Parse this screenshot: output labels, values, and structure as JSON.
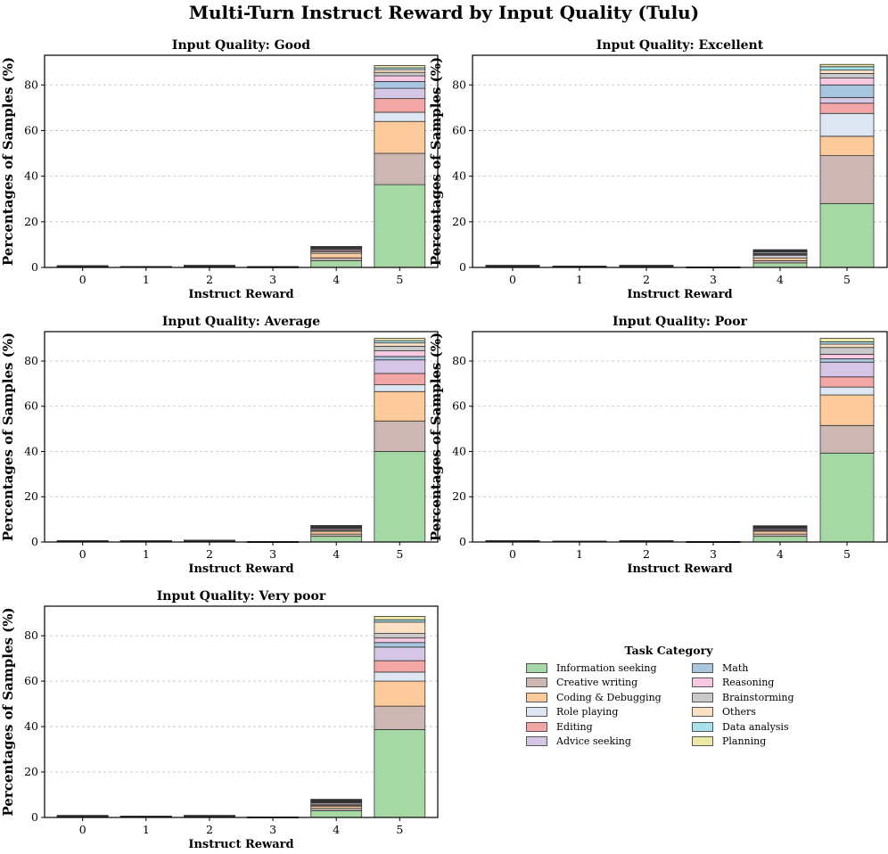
{
  "title": "Multi-Turn Instruct Reward by Input Quality (Tulu)",
  "legend": {
    "title": "Task Category",
    "items": [
      {
        "name": "Information seeking",
        "color": "#a6d8a6"
      },
      {
        "name": "Creative writing",
        "color": "#cdb7b2"
      },
      {
        "name": "Coding & Debugging",
        "color": "#fdca9b"
      },
      {
        "name": "Role playing",
        "color": "#dde6f3"
      },
      {
        "name": "Editing",
        "color": "#f3a6a6"
      },
      {
        "name": "Advice seeking",
        "color": "#d5c6e6"
      },
      {
        "name": "Math",
        "color": "#a9c6e0"
      },
      {
        "name": "Reasoning",
        "color": "#f6c8e2"
      },
      {
        "name": "Brainstorming",
        "color": "#c9c9c9"
      },
      {
        "name": "Others",
        "color": "#fbe0c4"
      },
      {
        "name": "Data analysis",
        "color": "#a8e3ed"
      },
      {
        "name": "Planning",
        "color": "#ece9a8"
      }
    ]
  },
  "chart_data": [
    {
      "type": "bar",
      "stacked": true,
      "title": "Input Quality: Good",
      "xlabel": "Instruct Reward",
      "ylabel": "Percentages of Samples (%)",
      "categories": [
        "0",
        "1",
        "2",
        "3",
        "4",
        "5"
      ],
      "ylim": [
        0,
        93
      ],
      "yticks": [
        0,
        20,
        40,
        60,
        80
      ],
      "grid": "y",
      "series": [
        {
          "name": "Information seeking",
          "values": [
            0.3,
            0.2,
            0.4,
            0.1,
            3.0,
            36.3
          ]
        },
        {
          "name": "Creative writing",
          "values": [
            0.1,
            0.05,
            0.1,
            0.05,
            1.2,
            13.7
          ]
        },
        {
          "name": "Coding & Debugging",
          "values": [
            0.1,
            0.05,
            0.1,
            0.05,
            2.0,
            14.0
          ]
        },
        {
          "name": "Role playing",
          "values": [
            0.05,
            0.02,
            0.05,
            0.02,
            0.6,
            4.0
          ]
        },
        {
          "name": "Editing",
          "values": [
            0.05,
            0.02,
            0.05,
            0.02,
            0.6,
            6.0
          ]
        },
        {
          "name": "Advice seeking",
          "values": [
            0.05,
            0.02,
            0.05,
            0.02,
            0.5,
            4.5
          ]
        },
        {
          "name": "Math",
          "values": [
            0.05,
            0.02,
            0.05,
            0.02,
            0.4,
            3.0
          ]
        },
        {
          "name": "Reasoning",
          "values": [
            0.02,
            0.02,
            0.02,
            0.01,
            0.3,
            2.5
          ]
        },
        {
          "name": "Brainstorming",
          "values": [
            0.02,
            0.01,
            0.02,
            0.01,
            0.2,
            1.5
          ]
        },
        {
          "name": "Others",
          "values": [
            0.02,
            0.01,
            0.02,
            0.01,
            0.2,
            1.2
          ]
        },
        {
          "name": "Data analysis",
          "values": [
            0.02,
            0.01,
            0.02,
            0.01,
            0.1,
            0.8
          ]
        },
        {
          "name": "Planning",
          "values": [
            0.02,
            0.01,
            0.02,
            0.01,
            0.1,
            1.0
          ]
        }
      ]
    },
    {
      "type": "bar",
      "stacked": true,
      "title": "Input Quality: Excellent",
      "xlabel": "Instruct Reward",
      "ylabel": "Percentages of Samples (%)",
      "categories": [
        "0",
        "1",
        "2",
        "3",
        "4",
        "5"
      ],
      "ylim": [
        0,
        93
      ],
      "yticks": [
        0,
        20,
        40,
        60,
        80
      ],
      "grid": "y",
      "series": [
        {
          "name": "Information seeking",
          "values": [
            0.4,
            0.3,
            0.4,
            0.05,
            2.0,
            28.0
          ]
        },
        {
          "name": "Creative writing",
          "values": [
            0.1,
            0.05,
            0.1,
            0.02,
            1.0,
            21.0
          ]
        },
        {
          "name": "Coding & Debugging",
          "values": [
            0.1,
            0.05,
            0.1,
            0.02,
            1.2,
            8.5
          ]
        },
        {
          "name": "Role playing",
          "values": [
            0.05,
            0.03,
            0.05,
            0.01,
            1.0,
            10.0
          ]
        },
        {
          "name": "Editing",
          "values": [
            0.05,
            0.03,
            0.05,
            0.01,
            0.5,
            4.5
          ]
        },
        {
          "name": "Advice seeking",
          "values": [
            0.05,
            0.02,
            0.05,
            0.01,
            0.4,
            2.5
          ]
        },
        {
          "name": "Math",
          "values": [
            0.05,
            0.02,
            0.05,
            0.01,
            0.6,
            5.5
          ]
        },
        {
          "name": "Reasoning",
          "values": [
            0.03,
            0.02,
            0.03,
            0.01,
            0.3,
            3.0
          ]
        },
        {
          "name": "Brainstorming",
          "values": [
            0.02,
            0.01,
            0.02,
            0.01,
            0.2,
            2.0
          ]
        },
        {
          "name": "Others",
          "values": [
            0.02,
            0.01,
            0.02,
            0.01,
            0.2,
            1.5
          ]
        },
        {
          "name": "Data analysis",
          "values": [
            0.02,
            0.01,
            0.02,
            0.01,
            0.2,
            1.5
          ]
        },
        {
          "name": "Planning",
          "values": [
            0.02,
            0.01,
            0.02,
            0.01,
            0.2,
            1.0
          ]
        }
      ]
    },
    {
      "type": "bar",
      "stacked": true,
      "title": "Input Quality: Average",
      "xlabel": "Instruct Reward",
      "ylabel": "Percentages of Samples (%)",
      "categories": [
        "0",
        "1",
        "2",
        "3",
        "4",
        "5"
      ],
      "ylim": [
        0,
        93
      ],
      "yticks": [
        0,
        20,
        40,
        60,
        80
      ],
      "grid": "y",
      "series": [
        {
          "name": "Information seeking",
          "values": [
            0.3,
            0.3,
            0.3,
            0.05,
            2.5,
            40.0
          ]
        },
        {
          "name": "Creative writing",
          "values": [
            0.05,
            0.05,
            0.1,
            0.02,
            1.0,
            13.5
          ]
        },
        {
          "name": "Coding & Debugging",
          "values": [
            0.05,
            0.05,
            0.1,
            0.02,
            1.2,
            13.0
          ]
        },
        {
          "name": "Role playing",
          "values": [
            0.02,
            0.02,
            0.05,
            0.01,
            0.4,
            3.0
          ]
        },
        {
          "name": "Editing",
          "values": [
            0.02,
            0.02,
            0.05,
            0.01,
            0.5,
            5.0
          ]
        },
        {
          "name": "Advice seeking",
          "values": [
            0.02,
            0.02,
            0.05,
            0.01,
            0.5,
            6.0
          ]
        },
        {
          "name": "Math",
          "values": [
            0.02,
            0.02,
            0.03,
            0.01,
            0.3,
            1.5
          ]
        },
        {
          "name": "Reasoning",
          "values": [
            0.02,
            0.02,
            0.03,
            0.01,
            0.3,
            2.5
          ]
        },
        {
          "name": "Brainstorming",
          "values": [
            0.02,
            0.01,
            0.02,
            0.01,
            0.2,
            2.0
          ]
        },
        {
          "name": "Others",
          "values": [
            0.02,
            0.01,
            0.02,
            0.01,
            0.2,
            1.5
          ]
        },
        {
          "name": "Data analysis",
          "values": [
            0.01,
            0.01,
            0.01,
            0.01,
            0.1,
            1.0
          ]
        },
        {
          "name": "Planning",
          "values": [
            0.01,
            0.01,
            0.01,
            0.01,
            0.1,
            1.0
          ]
        }
      ]
    },
    {
      "type": "bar",
      "stacked": true,
      "title": "Input Quality: Poor",
      "xlabel": "Instruct Reward",
      "ylabel": "Percentages of Samples (%)",
      "categories": [
        "0",
        "1",
        "2",
        "3",
        "4",
        "5"
      ],
      "ylim": [
        0,
        93
      ],
      "yticks": [
        0,
        20,
        40,
        60,
        80
      ],
      "grid": "y",
      "series": [
        {
          "name": "Information seeking",
          "values": [
            0.3,
            0.2,
            0.3,
            0.05,
            2.5,
            39.3
          ]
        },
        {
          "name": "Creative writing",
          "values": [
            0.05,
            0.02,
            0.05,
            0.02,
            1.0,
            12.2
          ]
        },
        {
          "name": "Coding & Debugging",
          "values": [
            0.05,
            0.02,
            0.05,
            0.02,
            1.2,
            13.5
          ]
        },
        {
          "name": "Role playing",
          "values": [
            0.02,
            0.01,
            0.02,
            0.01,
            0.4,
            3.5
          ]
        },
        {
          "name": "Editing",
          "values": [
            0.02,
            0.01,
            0.02,
            0.01,
            0.4,
            4.5
          ]
        },
        {
          "name": "Advice seeking",
          "values": [
            0.02,
            0.01,
            0.02,
            0.01,
            0.5,
            6.5
          ]
        },
        {
          "name": "Math",
          "values": [
            0.02,
            0.01,
            0.02,
            0.01,
            0.3,
            1.5
          ]
        },
        {
          "name": "Reasoning",
          "values": [
            0.02,
            0.01,
            0.02,
            0.01,
            0.3,
            2.0
          ]
        },
        {
          "name": "Brainstorming",
          "values": [
            0.01,
            0.01,
            0.01,
            0.01,
            0.2,
            3.0
          ]
        },
        {
          "name": "Others",
          "values": [
            0.01,
            0.01,
            0.01,
            0.01,
            0.2,
            1.5
          ]
        },
        {
          "name": "Data analysis",
          "values": [
            0.01,
            0.01,
            0.01,
            0.01,
            0.1,
            1.0
          ]
        },
        {
          "name": "Planning",
          "values": [
            0.01,
            0.01,
            0.01,
            0.01,
            0.1,
            1.5
          ]
        }
      ]
    },
    {
      "type": "bar",
      "stacked": true,
      "title": "Input Quality: Very poor",
      "xlabel": "Instruct Reward",
      "ylabel": "Percentages of Samples (%)",
      "categories": [
        "0",
        "1",
        "2",
        "3",
        "4",
        "5"
      ],
      "ylim": [
        0,
        93
      ],
      "yticks": [
        0,
        20,
        40,
        60,
        80
      ],
      "grid": "y",
      "series": [
        {
          "name": "Information seeking",
          "values": [
            0.4,
            0.3,
            0.4,
            0.05,
            3.0,
            38.7
          ]
        },
        {
          "name": "Creative writing",
          "values": [
            0.1,
            0.05,
            0.1,
            0.02,
            1.0,
            10.3
          ]
        },
        {
          "name": "Coding & Debugging",
          "values": [
            0.1,
            0.05,
            0.1,
            0.02,
            1.0,
            11.0
          ]
        },
        {
          "name": "Role playing",
          "values": [
            0.05,
            0.02,
            0.05,
            0.01,
            0.4,
            4.0
          ]
        },
        {
          "name": "Editing",
          "values": [
            0.05,
            0.02,
            0.05,
            0.01,
            0.5,
            5.0
          ]
        },
        {
          "name": "Advice seeking",
          "values": [
            0.05,
            0.02,
            0.05,
            0.01,
            0.6,
            6.0
          ]
        },
        {
          "name": "Math",
          "values": [
            0.03,
            0.02,
            0.03,
            0.01,
            0.3,
            2.0
          ]
        },
        {
          "name": "Reasoning",
          "values": [
            0.03,
            0.02,
            0.03,
            0.01,
            0.3,
            2.0
          ]
        },
        {
          "name": "Brainstorming",
          "values": [
            0.02,
            0.01,
            0.02,
            0.01,
            0.3,
            2.0
          ]
        },
        {
          "name": "Others",
          "values": [
            0.02,
            0.01,
            0.02,
            0.01,
            0.3,
            5.0
          ]
        },
        {
          "name": "Data analysis",
          "values": [
            0.02,
            0.01,
            0.02,
            0.01,
            0.1,
            1.0
          ]
        },
        {
          "name": "Planning",
          "values": [
            0.02,
            0.01,
            0.02,
            0.01,
            0.2,
            1.5
          ]
        }
      ]
    }
  ]
}
